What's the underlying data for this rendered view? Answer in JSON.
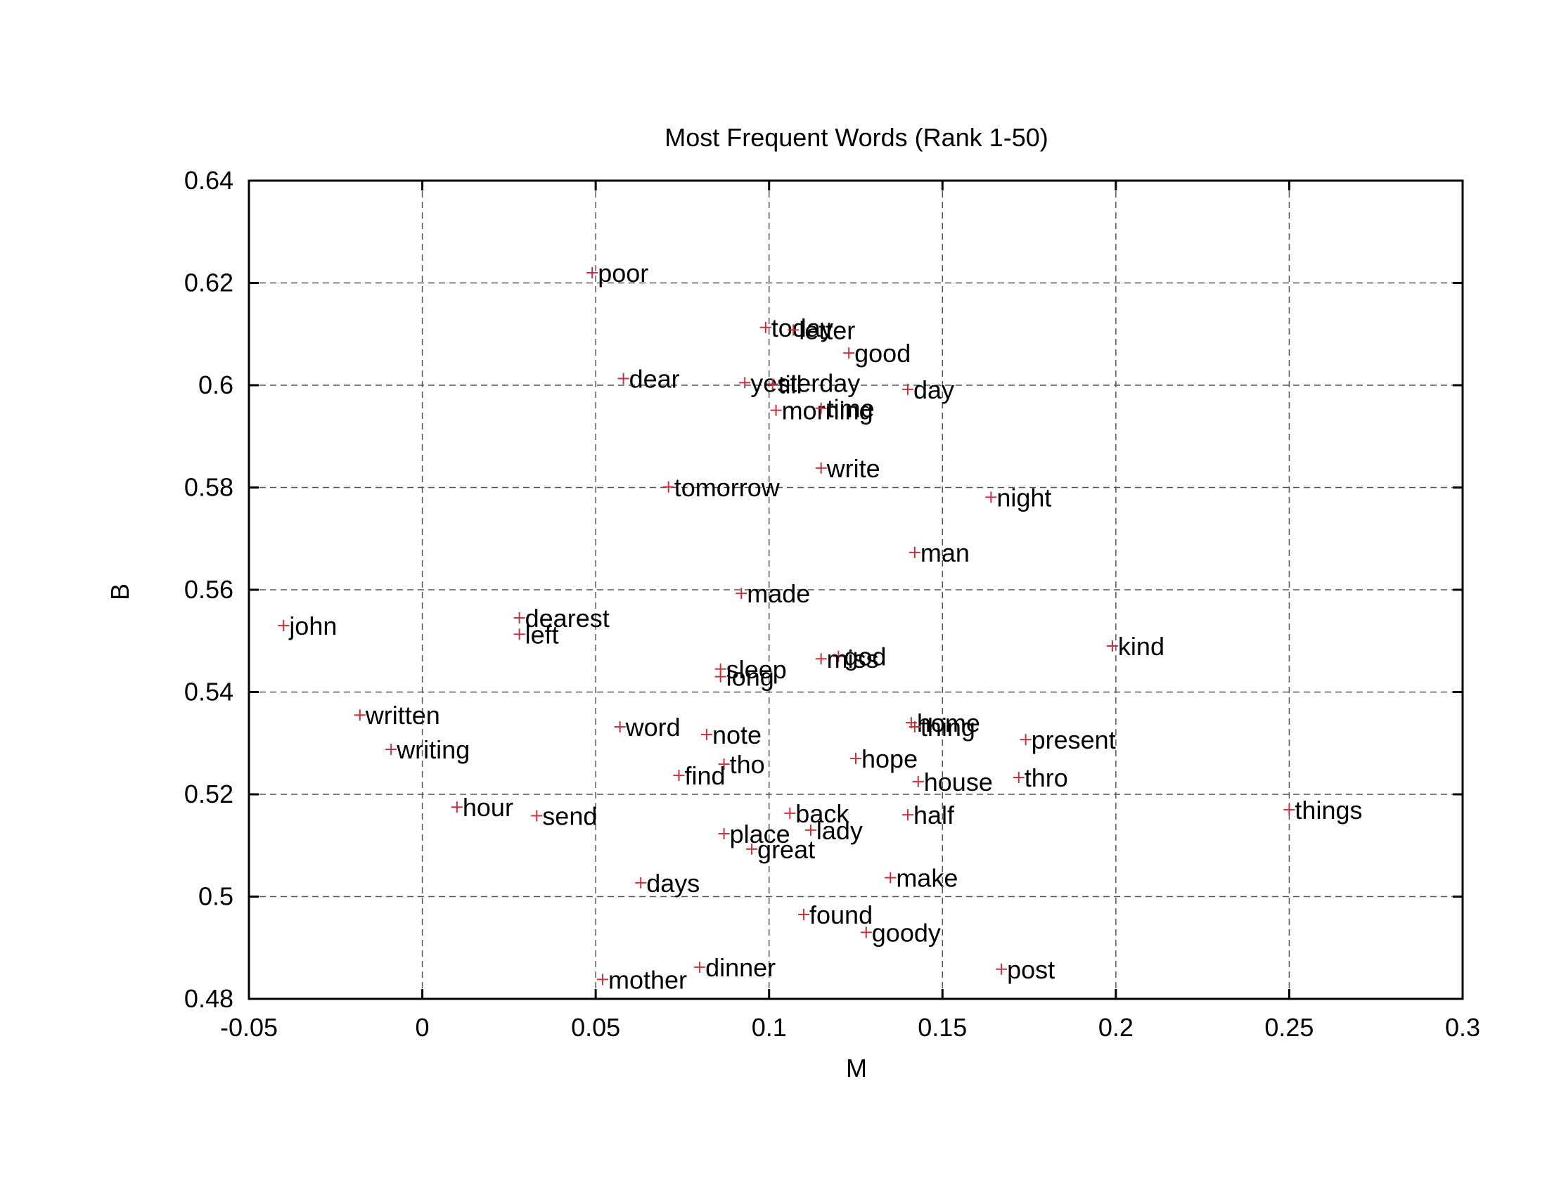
{
  "chart_data": {
    "type": "scatter",
    "title": "Most Frequent Words (Rank 1-50)",
    "xlabel": "M",
    "ylabel": "B",
    "xlim": [
      -0.05,
      0.3
    ],
    "ylim": [
      0.48,
      0.64
    ],
    "xticks": [
      -0.05,
      0,
      0.05,
      0.1,
      0.15,
      0.2,
      0.25,
      0.3
    ],
    "xtick_labels": [
      "-0.05",
      "0",
      "0.05",
      "0.1",
      "0.15",
      "0.2",
      "0.25",
      "0.3"
    ],
    "yticks": [
      0.48,
      0.5,
      0.52,
      0.54,
      0.56,
      0.58,
      0.6,
      0.62,
      0.64
    ],
    "ytick_labels": [
      "0.48",
      "0.5",
      "0.52",
      "0.54",
      "0.56",
      "0.58",
      "0.6",
      "0.62",
      "0.64"
    ],
    "grid": true,
    "marker": "+",
    "marker_color": "#c8323c",
    "points": [
      {
        "label": "poor",
        "x": 0.049,
        "y": 0.622
      },
      {
        "label": "today",
        "x": 0.099,
        "y": 0.6113
      },
      {
        "label": "letter",
        "x": 0.107,
        "y": 0.6108
      },
      {
        "label": "good",
        "x": 0.123,
        "y": 0.6063
      },
      {
        "label": "dear",
        "x": 0.058,
        "y": 0.6013
      },
      {
        "label": "yesterday",
        "x": 0.093,
        "y": 0.6005
      },
      {
        "label": "till",
        "x": 0.101,
        "y": 0.6002
      },
      {
        "label": "day",
        "x": 0.14,
        "y": 0.5992
      },
      {
        "label": "morning",
        "x": 0.102,
        "y": 0.5951
      },
      {
        "label": "time",
        "x": 0.115,
        "y": 0.5955
      },
      {
        "label": "write",
        "x": 0.115,
        "y": 0.5838
      },
      {
        "label": "tomorrow",
        "x": 0.071,
        "y": 0.5801
      },
      {
        "label": "night",
        "x": 0.164,
        "y": 0.5781
      },
      {
        "label": "man",
        "x": 0.142,
        "y": 0.5673
      },
      {
        "label": "made",
        "x": 0.092,
        "y": 0.5593
      },
      {
        "label": "john",
        "x": -0.04,
        "y": 0.553
      },
      {
        "label": "dearest",
        "x": 0.028,
        "y": 0.5545
      },
      {
        "label": "left",
        "x": 0.028,
        "y": 0.5513
      },
      {
        "label": "kind",
        "x": 0.199,
        "y": 0.549
      },
      {
        "label": "god",
        "x": 0.12,
        "y": 0.547
      },
      {
        "label": "miss",
        "x": 0.115,
        "y": 0.5465
      },
      {
        "label": "sleep",
        "x": 0.086,
        "y": 0.5445
      },
      {
        "label": "long",
        "x": 0.086,
        "y": 0.543
      },
      {
        "label": "written",
        "x": -0.018,
        "y": 0.5355
      },
      {
        "label": "home",
        "x": 0.141,
        "y": 0.534
      },
      {
        "label": "thing",
        "x": 0.142,
        "y": 0.5332
      },
      {
        "label": "word",
        "x": 0.057,
        "y": 0.5332
      },
      {
        "label": "note",
        "x": 0.082,
        "y": 0.5317
      },
      {
        "label": "present",
        "x": 0.174,
        "y": 0.5307
      },
      {
        "label": "writing",
        "x": -0.009,
        "y": 0.5288
      },
      {
        "label": "hope",
        "x": 0.125,
        "y": 0.527
      },
      {
        "label": "tho",
        "x": 0.087,
        "y": 0.5259
      },
      {
        "label": "find",
        "x": 0.074,
        "y": 0.5237
      },
      {
        "label": "thro",
        "x": 0.172,
        "y": 0.5233
      },
      {
        "label": "house",
        "x": 0.143,
        "y": 0.5225
      },
      {
        "label": "hour",
        "x": 0.01,
        "y": 0.5175
      },
      {
        "label": "things",
        "x": 0.25,
        "y": 0.517
      },
      {
        "label": "back",
        "x": 0.106,
        "y": 0.5163
      },
      {
        "label": "half",
        "x": 0.14,
        "y": 0.516
      },
      {
        "label": "send",
        "x": 0.033,
        "y": 0.5158
      },
      {
        "label": "lady",
        "x": 0.112,
        "y": 0.513
      },
      {
        "label": "place",
        "x": 0.087,
        "y": 0.5123
      },
      {
        "label": "great",
        "x": 0.095,
        "y": 0.5093
      },
      {
        "label": "make",
        "x": 0.135,
        "y": 0.5037
      },
      {
        "label": "days",
        "x": 0.063,
        "y": 0.5027
      },
      {
        "label": "found",
        "x": 0.11,
        "y": 0.4965
      },
      {
        "label": "goody",
        "x": 0.128,
        "y": 0.493
      },
      {
        "label": "dinner",
        "x": 0.08,
        "y": 0.4862
      },
      {
        "label": "post",
        "x": 0.167,
        "y": 0.4858
      },
      {
        "label": "mother",
        "x": 0.052,
        "y": 0.4838
      }
    ]
  }
}
